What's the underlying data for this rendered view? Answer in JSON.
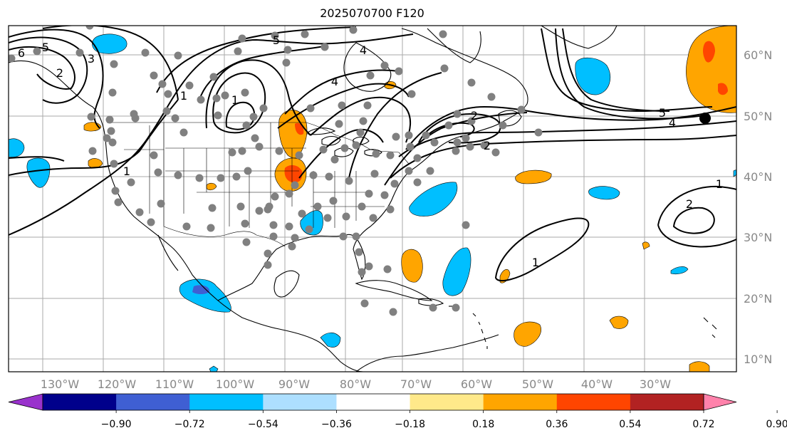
{
  "title": "2025070700 F120",
  "map": {
    "lon_labels": [
      "130°W",
      "120°W",
      "110°W",
      "100°W",
      "90°W",
      "80°W",
      "70°W",
      "60°W",
      "50°W",
      "40°W",
      "30°W"
    ],
    "lat_labels": [
      "60°N",
      "50°N",
      "40°N",
      "30°N",
      "20°N",
      "10°N"
    ],
    "contour_labels": [
      "6",
      "5",
      "3",
      "4",
      "1",
      "5",
      "4",
      "2",
      "2",
      "1",
      "1",
      "5",
      "4",
      "2",
      "1",
      "2",
      "1"
    ]
  },
  "colorbar": {
    "ticks": [
      "−0.90",
      "−0.72",
      "−0.54",
      "−0.36",
      "−0.18",
      "0.18",
      "0.36",
      "0.54",
      "0.72",
      "0.90"
    ],
    "colors": [
      "#9932CC",
      "#00008B",
      "#3F5FD3",
      "#00BFFF",
      "#ADDFFF",
      "#FFFFFF",
      "#FFE98A",
      "#FFA500",
      "#FF4500",
      "#B22222",
      "#FF82AB"
    ]
  },
  "colors": {
    "pos_fill": "#FFA500",
    "pos_strong": "#FF4500",
    "neg_fill": "#00BFFF",
    "neg_strong": "#3F5FD3",
    "contour": "#000000",
    "dots": "#808080",
    "grid": "#aaaaaa"
  }
}
